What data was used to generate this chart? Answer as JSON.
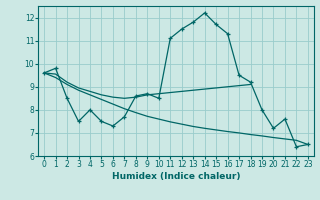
{
  "xlabel": "Humidex (Indice chaleur)",
  "background_color": "#cce8e4",
  "grid_color": "#99cccc",
  "line_color": "#006666",
  "xlim": [
    -0.5,
    23.5
  ],
  "ylim": [
    6,
    12.5
  ],
  "yticks": [
    6,
    7,
    8,
    9,
    10,
    11,
    12
  ],
  "xticks": [
    0,
    1,
    2,
    3,
    4,
    5,
    6,
    7,
    8,
    9,
    10,
    11,
    12,
    13,
    14,
    15,
    16,
    17,
    18,
    19,
    20,
    21,
    22,
    23
  ],
  "line1_x": [
    0,
    1,
    2,
    3,
    4,
    5,
    6,
    7,
    8,
    9,
    10,
    11,
    12,
    13,
    14,
    15,
    16,
    17,
    18,
    19,
    20,
    21,
    22,
    23
  ],
  "line1_y": [
    9.6,
    9.8,
    8.5,
    7.5,
    8.0,
    7.5,
    7.3,
    7.7,
    8.6,
    8.7,
    8.5,
    11.1,
    11.5,
    11.8,
    12.2,
    11.7,
    11.3,
    9.5,
    9.2,
    8.0,
    7.2,
    7.6,
    6.4,
    6.5
  ],
  "line2_x": [
    0,
    1,
    2,
    3,
    4,
    5,
    6,
    7,
    8,
    9,
    10,
    11,
    12,
    13,
    14,
    15,
    16,
    17,
    18
  ],
  "line2_y": [
    9.6,
    9.55,
    9.2,
    8.95,
    8.8,
    8.65,
    8.55,
    8.5,
    8.55,
    8.65,
    8.7,
    8.75,
    8.8,
    8.85,
    8.9,
    8.95,
    9.0,
    9.05,
    9.1
  ],
  "line3_x": [
    0,
    1,
    2,
    3,
    4,
    5,
    6,
    7,
    8,
    9,
    10,
    11,
    12,
    13,
    14,
    15,
    16,
    17,
    18,
    19,
    20,
    21,
    22,
    23
  ],
  "line3_y": [
    9.6,
    9.4,
    9.1,
    8.85,
    8.65,
    8.45,
    8.25,
    8.05,
    7.88,
    7.72,
    7.6,
    7.48,
    7.38,
    7.28,
    7.2,
    7.13,
    7.06,
    7.0,
    6.93,
    6.87,
    6.8,
    6.74,
    6.68,
    6.5
  ]
}
